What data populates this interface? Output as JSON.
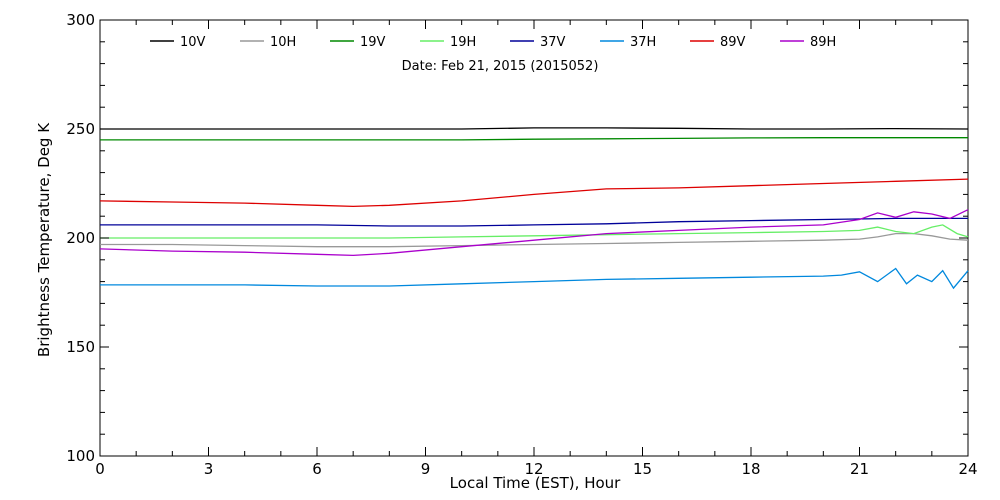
{
  "chart_data": {
    "type": "line",
    "annotation": "Date: Feb 21, 2015 (2015052)",
    "xlabel": "Local Time (EST), Hour",
    "ylabel": "Brightness Temperature, Deg K",
    "xlim": [
      0,
      24
    ],
    "ylim": [
      100,
      300
    ],
    "xticks": [
      0,
      3,
      6,
      9,
      12,
      15,
      18,
      21,
      24
    ],
    "yticks": [
      100,
      150,
      200,
      250,
      300
    ],
    "xtick_labels": [
      "0",
      "3",
      "6",
      "9",
      "12",
      "15",
      "18",
      "21",
      "24"
    ],
    "ytick_labels": [
      "100",
      "150",
      "200",
      "250",
      "300"
    ],
    "grid": false,
    "legend_position": "top",
    "series": [
      {
        "name": "10V",
        "color": "#000000",
        "x": [
          0,
          2,
          4,
          6,
          8,
          10,
          12,
          14,
          16,
          18,
          20,
          22,
          24
        ],
        "y": [
          250,
          250,
          250,
          250,
          250,
          250,
          250.5,
          250.5,
          250.3,
          250,
          250,
          250.2,
          250
        ]
      },
      {
        "name": "10H",
        "color": "#999999",
        "x": [
          0,
          2,
          4,
          6,
          8,
          10,
          12,
          14,
          16,
          18,
          20,
          21,
          21.5,
          22,
          22.5,
          23,
          23.5,
          24
        ],
        "y": [
          197,
          197,
          196.5,
          196,
          196,
          196.5,
          197,
          197.5,
          198,
          198.5,
          199,
          199.5,
          200.5,
          202,
          202,
          201,
          199.5,
          199
        ]
      },
      {
        "name": "19V",
        "color": "#008800",
        "x": [
          0,
          2,
          4,
          6,
          8,
          10,
          12,
          14,
          16,
          18,
          20,
          22,
          24
        ],
        "y": [
          245,
          245,
          245,
          245,
          245,
          245,
          245.3,
          245.5,
          245.7,
          245.9,
          246,
          246,
          246
        ]
      },
      {
        "name": "19H",
        "color": "#66ee66",
        "x": [
          0,
          2,
          4,
          6,
          8,
          10,
          12,
          14,
          16,
          18,
          20,
          21,
          21.5,
          22,
          22.5,
          23,
          23.3,
          23.7,
          24
        ],
        "y": [
          200,
          200,
          200,
          200,
          200,
          200.5,
          201,
          201.5,
          202,
          202.5,
          203,
          203.5,
          205,
          203,
          202,
          205,
          206,
          202,
          200.5
        ]
      },
      {
        "name": "37V",
        "color": "#000099",
        "x": [
          0,
          2,
          4,
          6,
          8,
          10,
          12,
          14,
          16,
          18,
          20,
          22,
          24
        ],
        "y": [
          206,
          206,
          206,
          206,
          205.5,
          205.5,
          206,
          206.5,
          207.5,
          208,
          208.5,
          209,
          209
        ]
      },
      {
        "name": "37H",
        "color": "#0088dd",
        "x": [
          0,
          2,
          4,
          6,
          8,
          10,
          12,
          14,
          16,
          18,
          20,
          20.5,
          21,
          21.5,
          22,
          22.3,
          22.6,
          23,
          23.3,
          23.6,
          24
        ],
        "y": [
          178.5,
          178.5,
          178.5,
          178,
          178,
          179,
          180,
          181,
          181.5,
          182,
          182.5,
          183,
          184.5,
          180,
          186,
          179,
          183,
          180,
          185,
          177,
          185
        ]
      },
      {
        "name": "89V",
        "color": "#dd0000",
        "x": [
          0,
          2,
          4,
          6,
          7,
          8,
          10,
          12,
          14,
          16,
          18,
          20,
          22,
          24
        ],
        "y": [
          217,
          216.5,
          216,
          215,
          214.5,
          215,
          217,
          220,
          222.5,
          223,
          224,
          225,
          226,
          227
        ]
      },
      {
        "name": "89H",
        "color": "#aa00cc",
        "x": [
          0,
          2,
          4,
          6,
          7,
          8,
          10,
          12,
          14,
          16,
          18,
          20,
          21,
          21.5,
          22,
          22.5,
          23,
          23.5,
          24
        ],
        "y": [
          195,
          194,
          193.5,
          192.5,
          192,
          193,
          196,
          199,
          202,
          203.5,
          205,
          206,
          208.5,
          211.5,
          209.5,
          212,
          211,
          209,
          213
        ]
      }
    ]
  }
}
